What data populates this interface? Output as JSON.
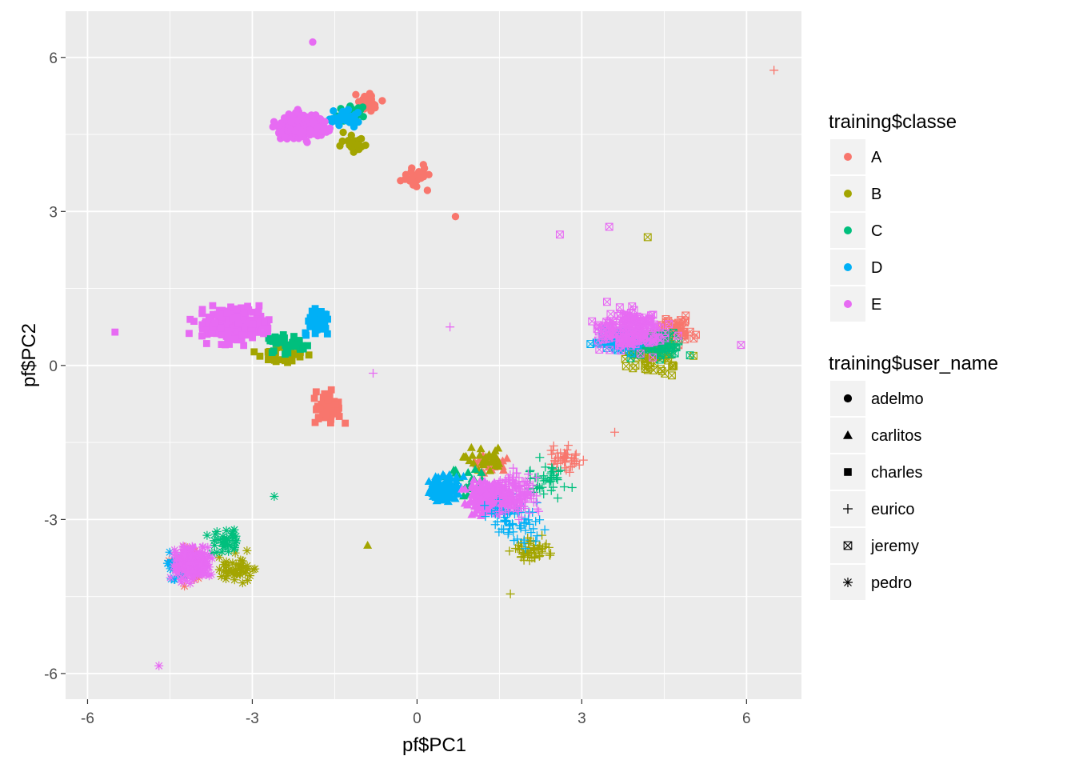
{
  "chart_data": {
    "type": "scatter",
    "title": "",
    "xlabel": "pf$PC1",
    "ylabel": "pf$PC2",
    "xlim": [
      -6.4,
      7.0
    ],
    "ylim": [
      -6.5,
      6.9
    ],
    "xticks": [
      -6,
      -3,
      0,
      3,
      6
    ],
    "yticks": [
      -6,
      -3,
      0,
      3,
      6
    ],
    "xtick_labels": [
      "-6",
      "-3",
      "0",
      "3",
      "6"
    ],
    "ytick_labels": [
      "-6",
      "-3",
      "0",
      "3",
      "6"
    ],
    "grid": true,
    "panel_background": "#ebebeb",
    "grid_color": "#ffffff",
    "color_legend": {
      "title": "training$classe",
      "entries": [
        {
          "label": "A",
          "color": "#f8766d"
        },
        {
          "label": "B",
          "color": "#a3a500"
        },
        {
          "label": "C",
          "color": "#00bf7d"
        },
        {
          "label": "D",
          "color": "#00b0f6"
        },
        {
          "label": "E",
          "color": "#e76bf3"
        }
      ]
    },
    "shape_legend": {
      "title": "training$user_name",
      "entries": [
        {
          "label": "adelmo",
          "shape": "circle"
        },
        {
          "label": "carlitos",
          "shape": "triangle"
        },
        {
          "label": "charles",
          "shape": "square"
        },
        {
          "label": "eurico",
          "shape": "plus"
        },
        {
          "label": "jeremy",
          "shape": "boxed-x"
        },
        {
          "label": "pedro",
          "shape": "asterisk"
        }
      ]
    },
    "legend_position": "right",
    "clusters": [
      {
        "user": "adelmo",
        "center": [
          -1.6,
          4.65
        ],
        "spread": [
          0.85,
          0.42
        ],
        "classes": [
          {
            "classe": "A",
            "count": 35,
            "offset": [
              0.7,
              0.45
            ],
            "spread": [
              0.35,
              0.35
            ]
          },
          {
            "classe": "B",
            "count": 25,
            "offset": [
              0.5,
              -0.35
            ],
            "spread": [
              0.5,
              0.35
            ]
          },
          {
            "classe": "C",
            "count": 30,
            "offset": [
              0.45,
              0.25
            ],
            "spread": [
              0.55,
              0.3
            ]
          },
          {
            "classe": "D",
            "count": 30,
            "offset": [
              0.3,
              0.15
            ],
            "spread": [
              0.5,
              0.3
            ]
          },
          {
            "classe": "E",
            "count": 200,
            "offset": [
              -0.5,
              0.0
            ],
            "spread": [
              0.85,
              0.42
            ]
          }
        ]
      },
      {
        "user": "adelmo-tail",
        "center": [
          0.0,
          3.6
        ],
        "spread": [
          0.5,
          0.4
        ],
        "classes": [
          {
            "classe": "A",
            "count": 28,
            "offset": [
              0.0,
              0.0
            ],
            "spread": [
              0.5,
              0.4
            ]
          }
        ]
      },
      {
        "user": "charles",
        "center": [
          -3.0,
          0.6
        ],
        "spread": [
          1.2,
          0.6
        ],
        "classes": [
          {
            "classe": "A",
            "count": 60,
            "offset": [
              1.4,
              -1.4
            ],
            "spread": [
              0.5,
              0.5
            ]
          },
          {
            "classe": "B",
            "count": 30,
            "offset": [
              0.5,
              -0.35
            ],
            "spread": [
              0.8,
              0.35
            ]
          },
          {
            "classe": "C",
            "count": 35,
            "offset": [
              0.6,
              -0.2
            ],
            "spread": [
              0.6,
              0.35
            ]
          },
          {
            "classe": "D",
            "count": 50,
            "offset": [
              1.2,
              0.25
            ],
            "spread": [
              0.35,
              0.45
            ]
          },
          {
            "classe": "E",
            "count": 260,
            "offset": [
              -0.4,
              0.2
            ],
            "spread": [
              1.1,
              0.55
            ]
          }
        ]
      },
      {
        "user": "pedro",
        "center": [
          -4.0,
          -3.85
        ],
        "spread": [
          0.7,
          0.55
        ],
        "classes": [
          {
            "classe": "A",
            "count": 40,
            "offset": [
              -0.2,
              0.0
            ],
            "spread": [
              0.65,
              0.55
            ]
          },
          {
            "classe": "B",
            "count": 45,
            "offset": [
              0.7,
              -0.1
            ],
            "spread": [
              0.6,
              0.5
            ]
          },
          {
            "classe": "C",
            "count": 35,
            "offset": [
              0.5,
              0.4
            ],
            "spread": [
              0.5,
              0.4
            ]
          },
          {
            "classe": "D",
            "count": 45,
            "offset": [
              -0.3,
              -0.1
            ],
            "spread": [
              0.55,
              0.45
            ]
          },
          {
            "classe": "E",
            "count": 200,
            "offset": [
              -0.1,
              0.0
            ],
            "spread": [
              0.65,
              0.55
            ]
          }
        ]
      },
      {
        "user": "carlitos",
        "center": [
          0.9,
          -2.3
        ],
        "spread": [
          0.8,
          0.6
        ],
        "classes": [
          {
            "classe": "A",
            "count": 30,
            "offset": [
              0.4,
              0.4
            ],
            "spread": [
              0.5,
              0.4
            ]
          },
          {
            "classe": "B",
            "count": 30,
            "offset": [
              0.3,
              0.5
            ],
            "spread": [
              0.6,
              0.4
            ]
          },
          {
            "classe": "C",
            "count": 25,
            "offset": [
              0.0,
              0.0
            ],
            "spread": [
              0.6,
              0.5
            ]
          },
          {
            "classe": "D",
            "count": 90,
            "offset": [
              -0.4,
              -0.1
            ],
            "spread": [
              0.55,
              0.5
            ]
          },
          {
            "classe": "E",
            "count": 160,
            "offset": [
              0.4,
              -0.3
            ],
            "spread": [
              0.7,
              0.6
            ]
          }
        ]
      },
      {
        "user": "eurico",
        "center": [
          1.8,
          -2.5
        ],
        "spread": [
          0.7,
          0.8
        ],
        "classes": [
          {
            "classe": "A",
            "count": 45,
            "offset": [
              0.9,
              0.7
            ],
            "spread": [
              0.5,
              0.4
            ]
          },
          {
            "classe": "B",
            "count": 60,
            "offset": [
              0.3,
              -1.1
            ],
            "spread": [
              0.6,
              0.4
            ]
          },
          {
            "classe": "C",
            "count": 40,
            "offset": [
              0.6,
              0.3
            ],
            "spread": [
              0.6,
              0.6
            ]
          },
          {
            "classe": "D",
            "count": 70,
            "offset": [
              0.0,
              -0.5
            ],
            "spread": [
              0.8,
              0.9
            ]
          },
          {
            "classe": "E",
            "count": 180,
            "offset": [
              0.0,
              0.0
            ],
            "spread": [
              0.65,
              0.7
            ]
          }
        ]
      },
      {
        "user": "jeremy",
        "center": [
          3.9,
          0.5
        ],
        "spread": [
          1.0,
          0.65
        ],
        "classes": [
          {
            "classe": "A",
            "count": 50,
            "offset": [
              0.8,
              0.2
            ],
            "spread": [
              0.7,
              0.5
            ]
          },
          {
            "classe": "B",
            "count": 60,
            "offset": [
              0.4,
              -0.3
            ],
            "spread": [
              0.9,
              0.6
            ]
          },
          {
            "classe": "C",
            "count": 70,
            "offset": [
              0.4,
              -0.1
            ],
            "spread": [
              0.9,
              0.5
            ]
          },
          {
            "classe": "D",
            "count": 90,
            "offset": [
              -0.2,
              0.0
            ],
            "spread": [
              0.7,
              0.4
            ]
          },
          {
            "classe": "E",
            "count": 180,
            "offset": [
              0.0,
              0.2
            ],
            "spread": [
              1.1,
              0.7
            ]
          }
        ]
      }
    ],
    "outliers": [
      {
        "x": 6.5,
        "y": 5.75,
        "classe": "A",
        "user": "eurico"
      },
      {
        "x": -0.9,
        "y": -3.5,
        "classe": "B",
        "user": "carlitos"
      },
      {
        "x": -1.9,
        "y": 6.3,
        "classe": "E",
        "user": "adelmo"
      },
      {
        "x": -4.7,
        "y": -5.85,
        "classe": "E",
        "user": "pedro"
      },
      {
        "x": -5.5,
        "y": 0.65,
        "classe": "E",
        "user": "charles"
      },
      {
        "x": -0.8,
        "y": -0.15,
        "classe": "E",
        "user": "eurico"
      },
      {
        "x": 0.6,
        "y": 0.75,
        "classe": "E",
        "user": "eurico"
      },
      {
        "x": 2.6,
        "y": 2.55,
        "classe": "E",
        "user": "jeremy"
      },
      {
        "x": 3.5,
        "y": 2.7,
        "classe": "E",
        "user": "jeremy"
      },
      {
        "x": 4.2,
        "y": 2.5,
        "classe": "B",
        "user": "jeremy"
      },
      {
        "x": 5.9,
        "y": 0.4,
        "classe": "E",
        "user": "jeremy"
      },
      {
        "x": -0.3,
        "y": 3.6,
        "classe": "A",
        "user": "adelmo"
      },
      {
        "x": 0.7,
        "y": 2.9,
        "classe": "A",
        "user": "adelmo"
      },
      {
        "x": 1.7,
        "y": -4.45,
        "classe": "B",
        "user": "eurico"
      },
      {
        "x": 3.6,
        "y": -1.3,
        "classe": "A",
        "user": "eurico"
      },
      {
        "x": -2.6,
        "y": -2.55,
        "classe": "C",
        "user": "pedro"
      }
    ]
  }
}
